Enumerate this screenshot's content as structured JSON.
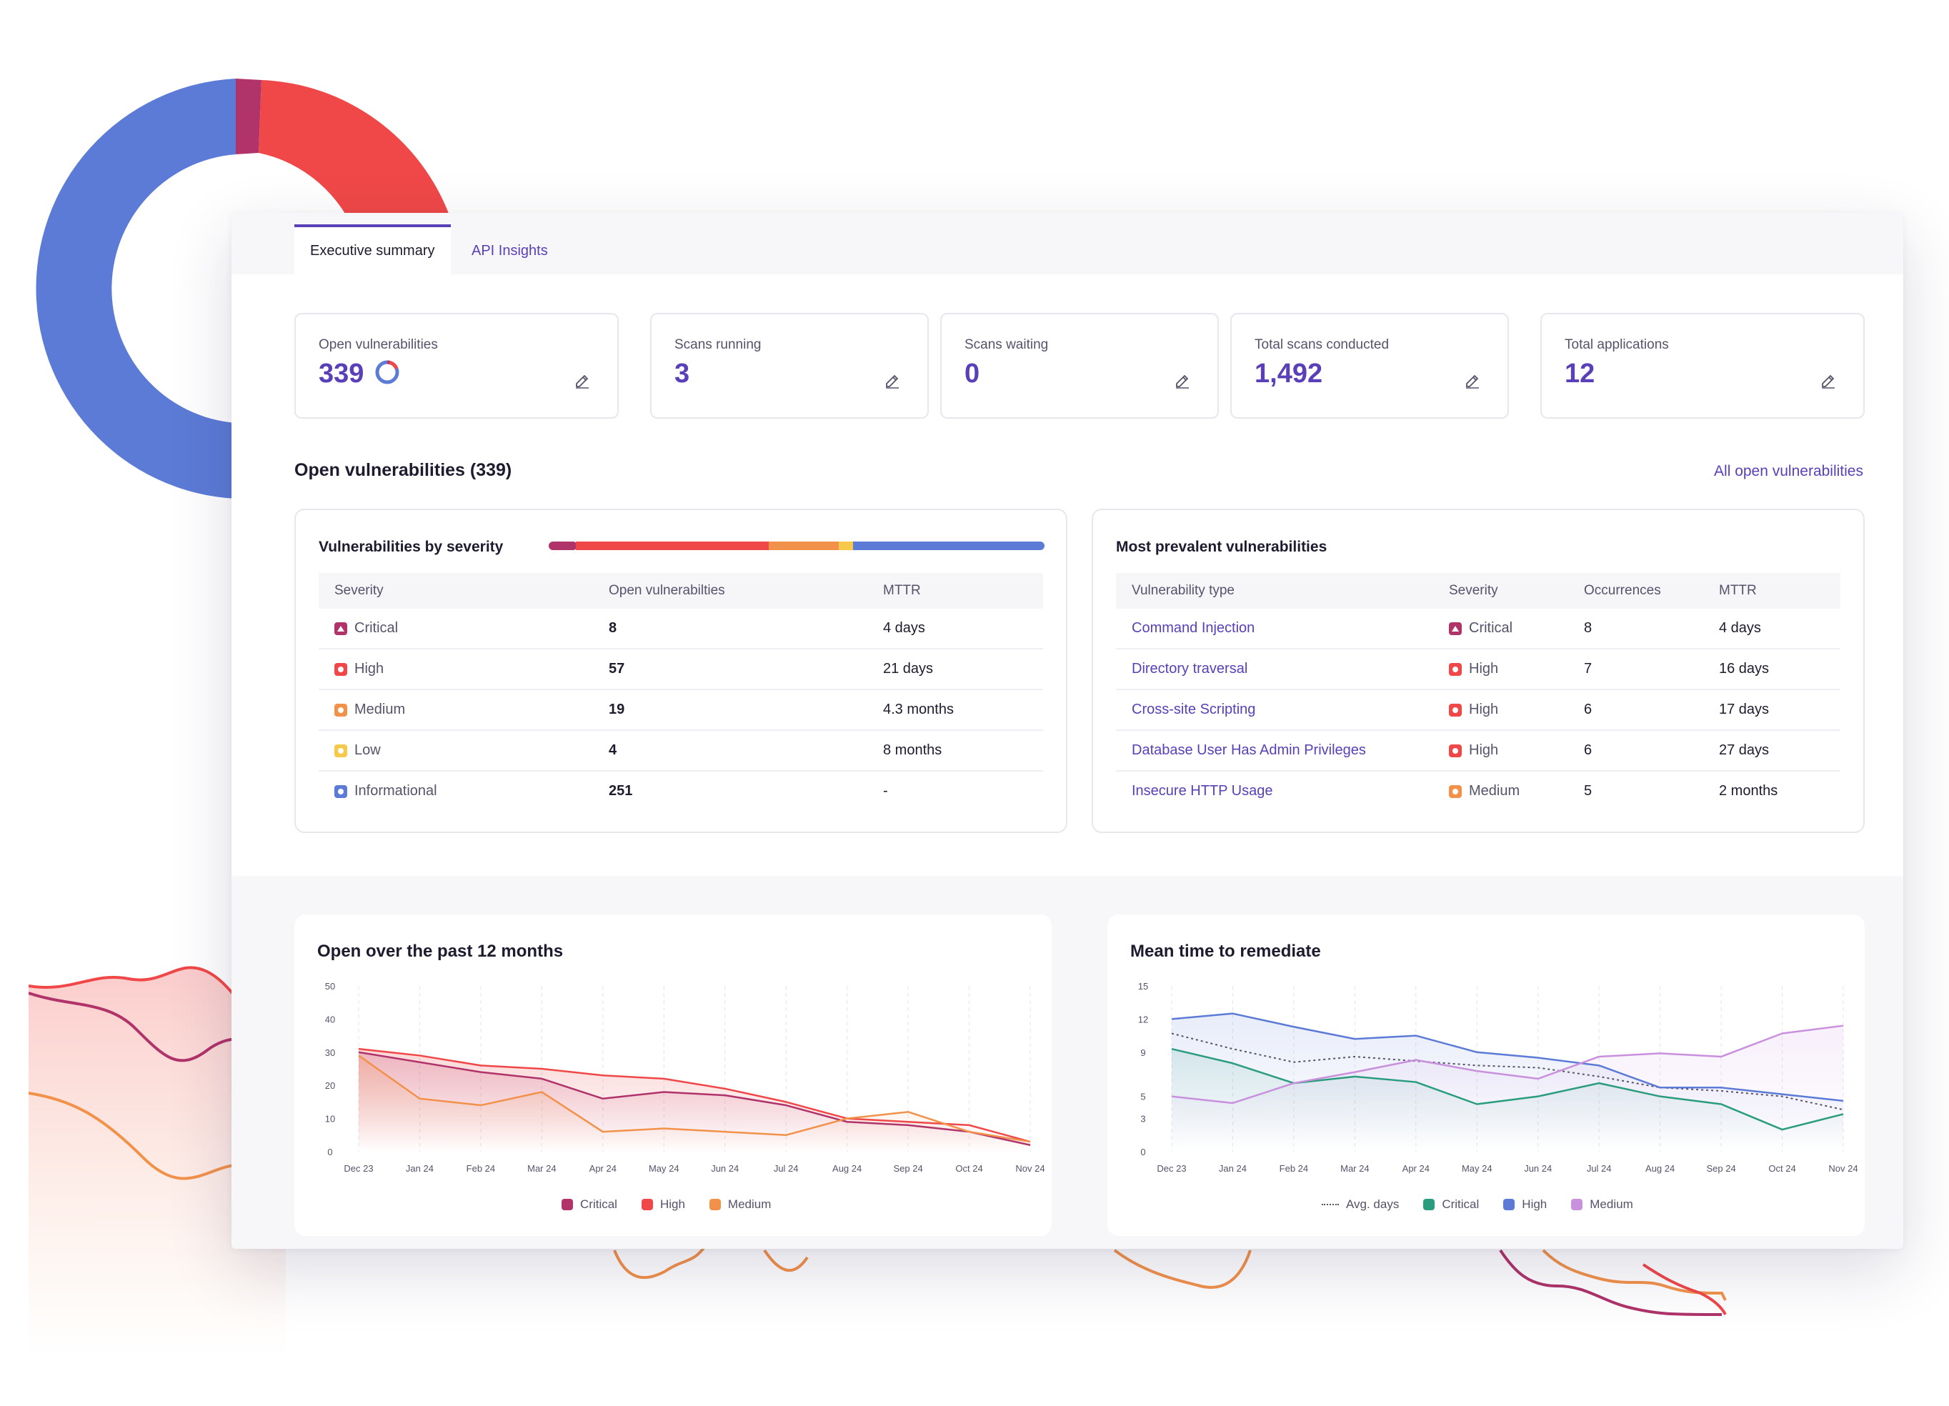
{
  "tabs": [
    {
      "label": "Executive summary",
      "active": true
    },
    {
      "label": "API Insights",
      "active": false
    }
  ],
  "stats": [
    {
      "label": "Open vulnerabilities",
      "value": "339"
    },
    {
      "label": "Scans running",
      "value": "3"
    },
    {
      "label": "Scans waiting",
      "value": "0"
    },
    {
      "label": "Total scans conducted",
      "value": "1,492"
    },
    {
      "label": "Total applications",
      "value": "12"
    }
  ],
  "section_title": "Open vulnerabilities (339)",
  "all_open_link": "All open vulnerabilities",
  "colors": {
    "accent": "#5a40b8",
    "critical": "#b0336a",
    "high": "#f04848",
    "medium": "#f2924a",
    "low": "#f6c94a",
    "informational": "#5c7bd6"
  },
  "severity_box": {
    "title": "Vulnerabilities by severity",
    "headers": [
      "Severity",
      "Open vulnerabilties",
      "MTTR"
    ],
    "rows": [
      {
        "severity": "Critical",
        "count": "8",
        "mttr": "4 days"
      },
      {
        "severity": "High",
        "count": "57",
        "mttr": "21 days"
      },
      {
        "severity": "Medium",
        "count": "19",
        "mttr": "4.3 months"
      },
      {
        "severity": "Low",
        "count": "4",
        "mttr": "8 months"
      },
      {
        "severity": "Informational",
        "count": "251",
        "mttr": "-"
      }
    ]
  },
  "prevalent_box": {
    "title": "Most prevalent vulnerabilities",
    "headers": [
      "Vulnerability type",
      "Severity",
      "Occurrences",
      "MTTR"
    ],
    "rows": [
      {
        "type": "Command Injection",
        "severity": "Critical",
        "occurrences": "8",
        "mttr": "4 days"
      },
      {
        "type": "Directory traversal",
        "severity": "High",
        "occurrences": "7",
        "mttr": "16 days"
      },
      {
        "type": "Cross-site Scripting",
        "severity": "High",
        "occurrences": "6",
        "mttr": "17 days"
      },
      {
        "type": "Database User Has Admin Privileges",
        "severity": "High",
        "occurrences": "6",
        "mttr": "27 days"
      },
      {
        "type": "Insecure HTTP Usage",
        "severity": "Medium",
        "occurrences": "5",
        "mttr": "2 months"
      }
    ]
  },
  "chart_data": [
    {
      "type": "line",
      "title": "Open over the past 12 months",
      "categories": [
        "Dec 23",
        "Jan 24",
        "Feb 24",
        "Mar 24",
        "Apr 24",
        "May 24",
        "Jun 24",
        "Jul 24",
        "Aug 24",
        "Sep 24",
        "Oct 24",
        "Nov 24"
      ],
      "yticks": [
        0,
        10,
        20,
        30,
        40,
        50
      ],
      "ylim": [
        0,
        50
      ],
      "grid": true,
      "legend_position": "bottom",
      "series": [
        {
          "name": "Critical",
          "color": "#b0336a",
          "values": [
            30,
            27,
            24,
            22,
            16,
            18,
            17,
            14,
            9,
            8,
            6,
            2
          ]
        },
        {
          "name": "High",
          "color": "#f04848",
          "values": [
            31,
            29,
            26,
            25,
            23,
            22,
            19,
            15,
            10,
            9,
            8,
            3
          ]
        },
        {
          "name": "Medium",
          "color": "#f2924a",
          "values": [
            29,
            16,
            14,
            18,
            6,
            7,
            6,
            5,
            10,
            12,
            6,
            3
          ]
        }
      ]
    },
    {
      "type": "line",
      "title": "Mean time to remediate",
      "categories": [
        "Dec 23",
        "Jan 24",
        "Feb 24",
        "Mar 24",
        "Apr 24",
        "May 24",
        "Jun 24",
        "Jul 24",
        "Aug 24",
        "Sep 24",
        "Oct 24",
        "Nov 24"
      ],
      "yticks": [
        0,
        3,
        5,
        9,
        12,
        15
      ],
      "ylim": [
        0,
        15
      ],
      "grid": true,
      "legend_position": "bottom",
      "series": [
        {
          "name": "Avg. days",
          "color": "#55536a",
          "style": "dotted",
          "values": [
            10.7,
            9.3,
            8.1,
            8.6,
            8.2,
            7.8,
            7.6,
            6.8,
            5.8,
            5.5,
            5.0,
            3.8
          ]
        },
        {
          "name": "Critical",
          "color": "#2a9d7e",
          "values": [
            9.3,
            8.0,
            6.2,
            6.8,
            6.3,
            4.3,
            5.0,
            6.2,
            5.0,
            4.3,
            2.0,
            3.4
          ]
        },
        {
          "name": "High",
          "color": "#5c7bd6",
          "values": [
            12.0,
            12.5,
            11.3,
            10.2,
            10.5,
            9.0,
            8.5,
            7.8,
            5.8,
            5.8,
            5.2,
            4.6
          ]
        },
        {
          "name": "Medium",
          "color": "#c990de",
          "values": [
            5.0,
            4.4,
            6.2,
            7.2,
            8.3,
            7.3,
            6.6,
            8.6,
            8.9,
            8.6,
            10.7,
            11.4
          ]
        }
      ]
    }
  ]
}
